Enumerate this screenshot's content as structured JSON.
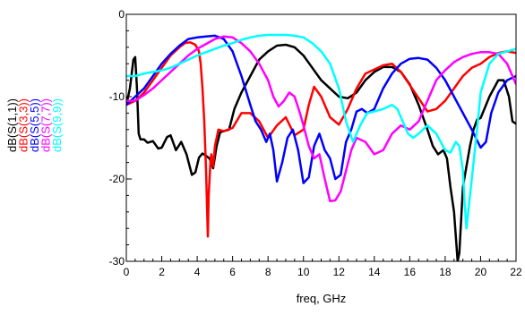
{
  "chart_data": {
    "type": "line",
    "title": "",
    "xlabel": "freq, GHz",
    "ylabel": "",
    "xlim": [
      0,
      22
    ],
    "ylim": [
      -30,
      0
    ],
    "xticks": [
      "0",
      "2",
      "4",
      "6",
      "8",
      "10",
      "12",
      "14",
      "16",
      "18",
      "20",
      "22"
    ],
    "yticks": [
      "0",
      "-10",
      "-20",
      "-30"
    ],
    "grid": false,
    "legend_position": "left, vertical",
    "series": [
      {
        "name": "dB(S(1,1))",
        "color": "#000000",
        "x": [
          0,
          0.2,
          0.4,
          0.5,
          0.6,
          0.7,
          0.8,
          1.0,
          1.2,
          1.5,
          1.8,
          2.0,
          2.3,
          2.5,
          2.8,
          3.1,
          3.4,
          3.7,
          3.9,
          4.1,
          4.3,
          4.5,
          4.7,
          4.9,
          5.1,
          5.3,
          5.5,
          5.8,
          6.1,
          6.5,
          7.0,
          7.5,
          8.0,
          8.5,
          9.0,
          9.5,
          10.0,
          10.5,
          11.0,
          11.5,
          12.0,
          12.5,
          13.0,
          13.5,
          14.0,
          14.5,
          15.0,
          15.5,
          16.0,
          16.5,
          17.0,
          17.3,
          17.6,
          17.9,
          18.1,
          18.3,
          18.5,
          18.6,
          18.7,
          18.8,
          18.9,
          19.0,
          19.2,
          19.4,
          19.6,
          19.8,
          20.0,
          20.5,
          21.0,
          21.3,
          21.6,
          21.8,
          22.0
        ],
        "y": [
          -11.0,
          -9.0,
          -5.5,
          -5.2,
          -9.0,
          -14.5,
          -15.2,
          -15.2,
          -15.6,
          -15.4,
          -16.3,
          -16.2,
          -14.9,
          -14.7,
          -16.5,
          -15.5,
          -17.0,
          -19.5,
          -19.2,
          -17.4,
          -16.9,
          -17.2,
          -17.5,
          -18.7,
          -16.0,
          -14.3,
          -14.2,
          -14.0,
          -11.5,
          -9.5,
          -7.5,
          -5.5,
          -4.5,
          -3.8,
          -3.7,
          -4.0,
          -5.0,
          -6.5,
          -8.0,
          -9.0,
          -10.0,
          -10.2,
          -9.5,
          -8.0,
          -7.0,
          -6.4,
          -6.4,
          -7.0,
          -8.5,
          -11.0,
          -14.0,
          -16.0,
          -17.0,
          -16.5,
          -17.5,
          -21.0,
          -24.0,
          -27.0,
          -30.0,
          -29.0,
          -25.0,
          -21.0,
          -18.5,
          -16.0,
          -14.0,
          -12.8,
          -12.6,
          -10.0,
          -8.0,
          -8.0,
          -10.0,
          -13.0,
          -13.3
        ]
      },
      {
        "name": "dB(S(3,3))",
        "color": "#ff0000",
        "x": [
          0,
          0.5,
          1.0,
          1.5,
          2.0,
          2.5,
          3.0,
          3.3,
          3.6,
          3.9,
          4.1,
          4.2,
          4.3,
          4.4,
          4.5,
          4.55,
          4.6,
          4.65,
          4.7,
          4.75,
          4.8,
          4.9,
          5.0,
          5.2,
          5.5,
          6.0,
          6.5,
          7.0,
          7.5,
          8.0,
          8.5,
          9.0,
          9.5,
          10.0,
          10.3,
          10.6,
          11.0,
          11.5,
          12.0,
          12.5,
          13.0,
          13.5,
          14.0,
          14.5,
          15.0,
          15.5,
          16.0,
          16.5,
          17.0,
          17.5,
          18.0,
          18.5,
          19.0,
          19.5,
          20.0,
          20.5,
          21.0,
          21.5,
          22.0
        ],
        "y": [
          -11.0,
          -10.5,
          -9.5,
          -8.0,
          -6.5,
          -5.0,
          -4.0,
          -3.5,
          -3.4,
          -3.7,
          -4.5,
          -6.0,
          -9.0,
          -13.0,
          -19.0,
          -23.0,
          -27.0,
          -22.0,
          -20.0,
          -18.0,
          -17.0,
          -18.5,
          -16.0,
          -14.0,
          -14.2,
          -13.8,
          -12.0,
          -12.0,
          -13.0,
          -15.0,
          -13.5,
          -12.5,
          -14.7,
          -14.0,
          -11.0,
          -8.8,
          -10.0,
          -12.5,
          -13.4,
          -11.5,
          -9.0,
          -7.2,
          -6.7,
          -6.2,
          -6.0,
          -7.0,
          -8.6,
          -10.2,
          -11.8,
          -11.5,
          -10.5,
          -9.0,
          -7.5,
          -6.5,
          -6.0,
          -5.2,
          -4.7,
          -4.5,
          -4.7
        ]
      },
      {
        "name": "dB(S(5,5))",
        "color": "#0000ff",
        "x": [
          0,
          0.5,
          1.0,
          1.5,
          2.0,
          2.5,
          3.0,
          3.5,
          4.0,
          4.5,
          5.0,
          5.5,
          6.0,
          6.5,
          7.0,
          7.3,
          7.6,
          7.9,
          8.1,
          8.3,
          8.5,
          8.8,
          9.1,
          9.4,
          9.7,
          10.0,
          10.3,
          10.6,
          10.9,
          11.2,
          11.5,
          11.8,
          12.1,
          12.4,
          12.7,
          13.0,
          13.3,
          13.6,
          14.0,
          14.5,
          15.0,
          15.5,
          16.0,
          16.5,
          17.0,
          17.5,
          18.0,
          18.5,
          19.0,
          19.5,
          20.0,
          20.3,
          20.6,
          21.0,
          21.5,
          22.0
        ],
        "y": [
          -11.0,
          -10.0,
          -9.0,
          -7.5,
          -6.0,
          -4.8,
          -3.8,
          -3.0,
          -2.8,
          -2.7,
          -2.6,
          -3.0,
          -4.5,
          -7.5,
          -11.0,
          -13.0,
          -14.0,
          -15.5,
          -14.5,
          -16.5,
          -20.3,
          -18.0,
          -15.0,
          -14.0,
          -16.5,
          -20.5,
          -19.8,
          -16.0,
          -14.5,
          -16.5,
          -17.5,
          -20.0,
          -19.5,
          -15.5,
          -14.0,
          -11.8,
          -11.5,
          -12.0,
          -11.5,
          -9.0,
          -7.2,
          -6.0,
          -5.4,
          -5.3,
          -5.5,
          -6.5,
          -8.0,
          -10.0,
          -12.0,
          -14.0,
          -16.2,
          -15.5,
          -12.0,
          -9.5,
          -8.0,
          -7.5
        ]
      },
      {
        "name": "dB(S(7,7))",
        "color": "#ff00ff",
        "x": [
          0,
          0.5,
          1.0,
          1.5,
          2.0,
          2.5,
          3.0,
          3.5,
          4.0,
          4.5,
          5.0,
          5.5,
          6.0,
          6.5,
          7.0,
          7.5,
          8.0,
          8.3,
          8.6,
          8.9,
          9.2,
          9.5,
          9.8,
          10.0,
          10.3,
          10.6,
          10.9,
          11.2,
          11.5,
          11.8,
          12.1,
          12.4,
          12.7,
          13.0,
          13.5,
          14.0,
          14.5,
          15.0,
          15.5,
          16.0,
          16.5,
          17.0,
          17.5,
          18.0,
          18.5,
          19.0,
          19.5,
          20.0,
          20.5,
          21.0,
          21.5,
          22.0
        ],
        "y": [
          -10.5,
          -10.5,
          -9.8,
          -9.0,
          -8.0,
          -7.0,
          -6.0,
          -5.0,
          -4.2,
          -3.6,
          -3.0,
          -2.7,
          -2.8,
          -3.5,
          -4.5,
          -6.0,
          -8.0,
          -10.0,
          -11.2,
          -10.5,
          -9.5,
          -10.0,
          -12.0,
          -13.5,
          -16.0,
          -17.5,
          -17.0,
          -20.0,
          -22.7,
          -22.6,
          -21.5,
          -19.0,
          -16.5,
          -15.0,
          -15.5,
          -17.0,
          -16.5,
          -14.5,
          -13.5,
          -14.0,
          -13.0,
          -10.5,
          -8.0,
          -6.8,
          -5.8,
          -5.2,
          -4.8,
          -4.6,
          -4.6,
          -4.8,
          -6.0,
          -8.5
        ]
      },
      {
        "name": "dB(S(9,9))",
        "color": "#00ffff",
        "x": [
          0,
          0.5,
          1.0,
          1.5,
          2.0,
          2.5,
          3.0,
          3.5,
          4.0,
          4.5,
          5.0,
          5.5,
          6.0,
          6.5,
          7.0,
          7.5,
          8.0,
          8.5,
          9.0,
          9.5,
          10.0,
          10.5,
          11.0,
          11.5,
          12.0,
          12.4,
          12.8,
          13.2,
          13.6,
          14.0,
          14.5,
          15.0,
          15.3,
          15.6,
          15.9,
          16.2,
          16.5,
          17.0,
          17.5,
          18.0,
          18.3,
          18.6,
          18.8,
          19.0,
          19.1,
          19.2,
          19.3,
          19.5,
          19.8,
          20.0,
          20.5,
          21.0,
          21.5,
          22.0
        ],
        "y": [
          -7.5,
          -7.5,
          -7.2,
          -7.0,
          -6.8,
          -6.5,
          -6.0,
          -5.5,
          -5.0,
          -4.6,
          -4.2,
          -3.8,
          -3.5,
          -3.1,
          -2.8,
          -2.6,
          -2.5,
          -2.5,
          -2.5,
          -2.6,
          -2.8,
          -3.5,
          -4.5,
          -6.0,
          -9.0,
          -13.0,
          -15.5,
          -13.5,
          -12.0,
          -11.8,
          -11.5,
          -11.0,
          -11.5,
          -13.0,
          -14.5,
          -15.0,
          -14.5,
          -13.5,
          -14.5,
          -16.5,
          -16.8,
          -15.5,
          -16.0,
          -19.0,
          -23.0,
          -26.0,
          -24.0,
          -20.0,
          -14.0,
          -9.5,
          -6.0,
          -4.8,
          -4.5,
          -4.2
        ]
      }
    ]
  }
}
